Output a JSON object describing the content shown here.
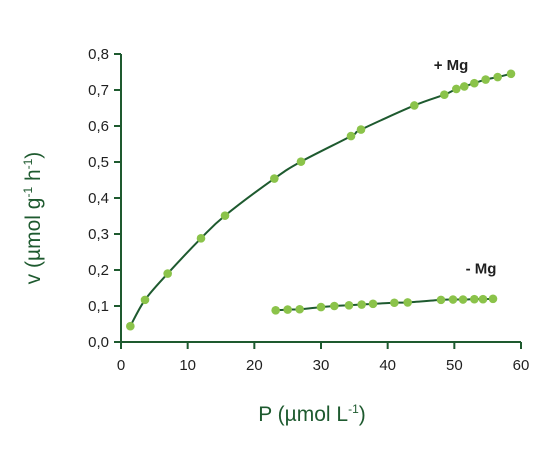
{
  "chart_data": {
    "type": "scatter",
    "xlabel": {
      "main": "P (µmol L",
      "sup": "-1",
      "tail": ")"
    },
    "ylabel": {
      "main": "v (µmol g",
      "sup1": "-1",
      "mid": " h",
      "sup2": "-1",
      "tail": ")"
    },
    "xlim": [
      0,
      60
    ],
    "ylim": [
      0,
      0.8
    ],
    "xticks": [
      0,
      10,
      20,
      30,
      40,
      50,
      60
    ],
    "yticks": [
      0.0,
      0.1,
      0.2,
      0.3,
      0.4,
      0.5,
      0.6,
      0.7,
      0.8
    ],
    "ytick_labels": [
      "0,0",
      "0,1",
      "0,2",
      "0,3",
      "0,4",
      "0,5",
      "0,6",
      "0,7",
      "0,8"
    ],
    "grid": false,
    "colors": {
      "marker": "#8bc34a",
      "line": "#1e5a2f",
      "axis": "#1e5a2f"
    },
    "series": [
      {
        "name": "+ Mg",
        "x": [
          1.4,
          3.6,
          7.0,
          12.0,
          15.6,
          23.0,
          27.0,
          34.5,
          36.0,
          44.0,
          48.5,
          50.3,
          51.5,
          53.0,
          54.7,
          56.5,
          58.5
        ],
        "y": [
          0.044,
          0.117,
          0.19,
          0.288,
          0.351,
          0.454,
          0.501,
          0.572,
          0.59,
          0.657,
          0.687,
          0.703,
          0.71,
          0.719,
          0.729,
          0.736,
          0.745
        ]
      },
      {
        "name": "- Mg",
        "x": [
          23.2,
          25.0,
          26.8,
          30.0,
          32.0,
          34.2,
          36.1,
          37.8,
          41.0,
          43.0,
          48.0,
          49.8,
          51.3,
          53.0,
          54.3,
          55.8
        ],
        "y": [
          0.088,
          0.09,
          0.091,
          0.097,
          0.1,
          0.102,
          0.104,
          0.106,
          0.109,
          0.11,
          0.117,
          0.118,
          0.118,
          0.119,
          0.119,
          0.12
        ]
      }
    ],
    "annotations": [
      {
        "text": "+ Mg",
        "x": 49.5,
        "y": 0.755
      },
      {
        "text": "- Mg",
        "x": 54,
        "y": 0.19
      }
    ]
  }
}
